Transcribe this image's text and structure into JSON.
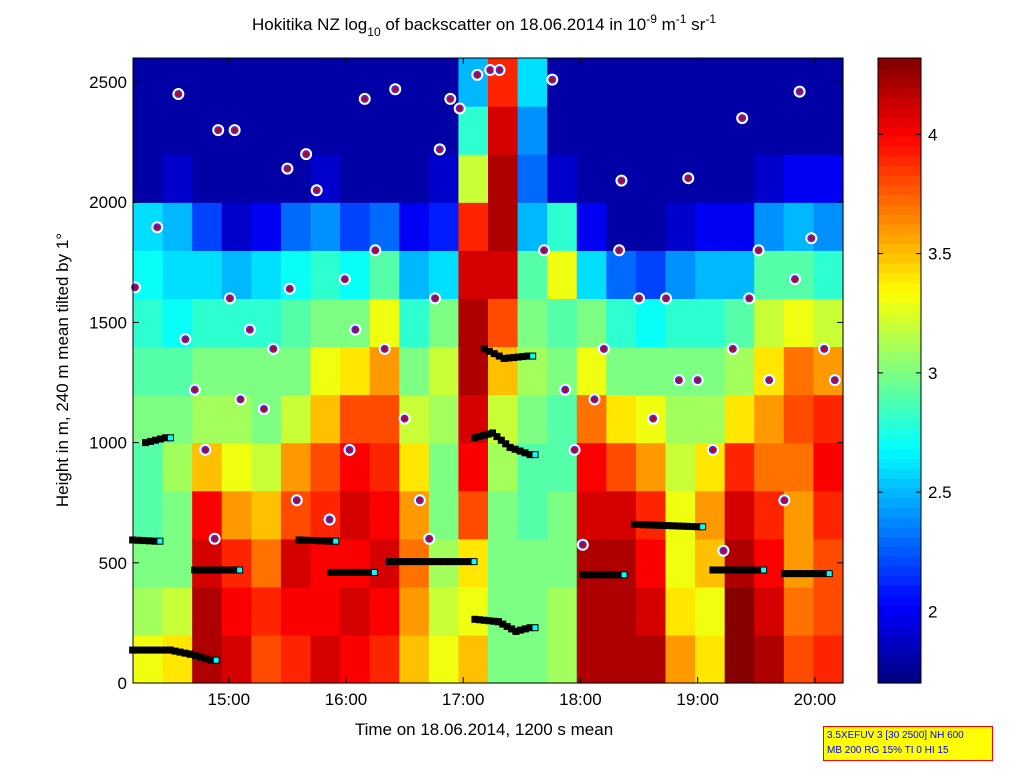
{
  "chart_data": {
    "type": "heatmap",
    "title": {
      "prefix": "Hokitika NZ log",
      "sub": "10",
      "mid": " of backscatter on 18.06.2014 in 10",
      "sup1": "-9",
      "unit1": " m",
      "sup2": "-1",
      "unit2": " sr",
      "sup3": "-1"
    },
    "xlabel": "Time on 18.06.2014, 1200 s mean",
    "ylabel": "Height in m, 240 m mean tilted by 1°",
    "xlim": [
      14.183,
      20.24
    ],
    "ylim": [
      0,
      2600
    ],
    "xticks": [
      {
        "v": 15,
        "label": "15:00"
      },
      {
        "v": 16,
        "label": "16:00"
      },
      {
        "v": 17,
        "label": "17:00"
      },
      {
        "v": 18,
        "label": "18:00"
      },
      {
        "v": 19,
        "label": "19:00"
      },
      {
        "v": 20,
        "label": "20:00"
      }
    ],
    "yticks": [
      {
        "v": 0,
        "label": "0"
      },
      {
        "v": 500,
        "label": "500"
      },
      {
        "v": 1000,
        "label": "1000"
      },
      {
        "v": 1500,
        "label": "1500"
      },
      {
        "v": 2000,
        "label": "2000"
      },
      {
        "v": 2500,
        "label": "2500"
      }
    ],
    "colorbar": {
      "clim": [
        1.7,
        4.32
      ],
      "ticks": [
        {
          "v": 2,
          "label": "2"
        },
        {
          "v": 2.5,
          "label": "2.5"
        },
        {
          "v": 3,
          "label": "3"
        },
        {
          "v": 3.5,
          "label": "3.5"
        },
        {
          "v": 4,
          "label": "4"
        }
      ],
      "colormap": "jet"
    },
    "height_bin_m": 200,
    "grid": [
      [
        3.3,
        3.1,
        3.0,
        2.9,
        2.9,
        3.0,
        2.9,
        2.8,
        2.7,
        2.6,
        1.8,
        1.8,
        1.8
      ],
      [
        3.4,
        3.2,
        3.0,
        3.0,
        3.1,
        3.0,
        2.9,
        2.7,
        2.6,
        2.5,
        1.9,
        1.8,
        1.8
      ],
      [
        4.2,
        4.2,
        4.1,
        4.0,
        3.5,
        3.1,
        3.0,
        2.8,
        2.6,
        2.2,
        1.8,
        1.8,
        1.8
      ],
      [
        4.1,
        4.0,
        3.9,
        3.6,
        3.3,
        3.1,
        3.0,
        2.8,
        2.5,
        1.9,
        1.8,
        1.8,
        1.8
      ],
      [
        3.8,
        3.9,
        3.7,
        3.5,
        3.2,
        3.0,
        3.0,
        2.8,
        2.6,
        2.0,
        1.8,
        1.8,
        1.8
      ],
      [
        3.9,
        4.0,
        4.1,
        3.8,
        3.6,
        3.2,
        3.0,
        2.9,
        2.7,
        2.3,
        1.8,
        1.8,
        1.8
      ],
      [
        4.1,
        4.0,
        4.0,
        3.9,
        3.8,
        3.5,
        3.3,
        3.0,
        2.8,
        2.4,
        1.9,
        1.8,
        1.8
      ],
      [
        4.0,
        4.1,
        4.0,
        4.1,
        4.0,
        3.8,
        3.4,
        3.0,
        2.7,
        2.2,
        1.8,
        1.8,
        1.8
      ],
      [
        3.9,
        4.0,
        4.1,
        4.0,
        3.9,
        3.8,
        3.6,
        3.3,
        2.9,
        2.3,
        1.8,
        1.8,
        1.8
      ],
      [
        3.5,
        3.6,
        3.7,
        3.6,
        3.4,
        3.2,
        3.0,
        2.8,
        2.5,
        2.0,
        1.8,
        1.8,
        1.8
      ],
      [
        3.3,
        3.2,
        3.1,
        3.0,
        3.0,
        3.1,
        3.2,
        3.0,
        2.6,
        2.1,
        1.9,
        1.8,
        1.8
      ],
      [
        3.5,
        3.3,
        3.4,
        3.8,
        4.0,
        4.1,
        4.2,
        4.2,
        4.1,
        3.9,
        3.2,
        2.8,
        2.5
      ],
      [
        3.0,
        3.0,
        3.0,
        3.0,
        3.1,
        3.2,
        3.5,
        3.8,
        4.1,
        4.2,
        4.2,
        4.1,
        3.9
      ],
      [
        3.0,
        3.0,
        3.0,
        2.9,
        2.9,
        3.0,
        3.1,
        3.0,
        2.9,
        2.5,
        2.3,
        2.4,
        2.6
      ],
      [
        3.1,
        3.1,
        3.0,
        3.0,
        2.9,
        2.9,
        3.0,
        2.9,
        3.3,
        2.8,
        1.9,
        1.8,
        1.8
      ],
      [
        4.2,
        4.2,
        4.2,
        4.1,
        4.0,
        3.7,
        3.3,
        3.0,
        2.6,
        2.0,
        1.8,
        1.8,
        1.8
      ],
      [
        4.2,
        4.2,
        4.2,
        4.1,
        3.8,
        3.4,
        3.0,
        2.8,
        2.3,
        1.8,
        1.8,
        1.8,
        1.8
      ],
      [
        4.2,
        4.1,
        4.0,
        3.9,
        3.6,
        3.3,
        3.0,
        2.7,
        2.2,
        1.8,
        1.8,
        1.8,
        1.8
      ],
      [
        3.6,
        3.4,
        3.3,
        3.3,
        3.2,
        3.1,
        3.0,
        2.8,
        2.4,
        1.9,
        1.8,
        1.8,
        1.8
      ],
      [
        3.4,
        3.3,
        3.5,
        3.6,
        3.4,
        3.1,
        3.0,
        2.8,
        2.5,
        2.0,
        1.8,
        1.8,
        1.8
      ],
      [
        4.3,
        4.3,
        4.2,
        4.1,
        3.9,
        3.4,
        3.1,
        2.9,
        2.5,
        2.0,
        1.8,
        1.8,
        1.8
      ],
      [
        4.2,
        4.1,
        4.0,
        3.9,
        3.7,
        3.6,
        3.4,
        3.2,
        2.9,
        2.4,
        1.9,
        1.8,
        1.8
      ],
      [
        3.8,
        3.7,
        3.6,
        3.6,
        3.7,
        3.8,
        3.7,
        3.3,
        2.9,
        2.5,
        2.0,
        1.8,
        1.8
      ],
      [
        3.9,
        3.8,
        3.8,
        3.9,
        4.0,
        3.9,
        3.6,
        3.2,
        2.8,
        2.4,
        2.0,
        1.8,
        1.8
      ]
    ],
    "cloud_base_points": [
      [
        14.2,
        1646
      ],
      [
        14.57,
        2450
      ],
      [
        14.39,
        1896
      ],
      [
        14.63,
        1430
      ],
      [
        14.71,
        1220
      ],
      [
        14.8,
        970
      ],
      [
        14.88,
        600
      ],
      [
        14.91,
        2300
      ],
      [
        15.05,
        2300
      ],
      [
        15.01,
        1600
      ],
      [
        15.1,
        1180
      ],
      [
        15.18,
        1470
      ],
      [
        15.3,
        1140
      ],
      [
        15.38,
        1390
      ],
      [
        15.5,
        2140
      ],
      [
        15.52,
        1640
      ],
      [
        15.58,
        760
      ],
      [
        15.66,
        2200
      ],
      [
        15.75,
        2050
      ],
      [
        15.86,
        680
      ],
      [
        15.99,
        1680
      ],
      [
        16.08,
        1470
      ],
      [
        16.03,
        970
      ],
      [
        16.16,
        2430
      ],
      [
        16.25,
        1800
      ],
      [
        16.33,
        1390
      ],
      [
        16.42,
        2470
      ],
      [
        16.5,
        1100
      ],
      [
        16.63,
        760
      ],
      [
        16.71,
        600
      ],
      [
        16.76,
        1600
      ],
      [
        16.8,
        2220
      ],
      [
        16.89,
        2430
      ],
      [
        16.97,
        2390
      ],
      [
        17.12,
        2530
      ],
      [
        17.23,
        2550
      ],
      [
        17.31,
        2550
      ],
      [
        17.76,
        2510
      ],
      [
        17.69,
        1800
      ],
      [
        17.87,
        1220
      ],
      [
        17.95,
        970
      ],
      [
        18.02,
        575
      ],
      [
        18.12,
        1180
      ],
      [
        18.2,
        1390
      ],
      [
        18.33,
        1800
      ],
      [
        18.35,
        2090
      ],
      [
        18.5,
        1600
      ],
      [
        18.62,
        1100
      ],
      [
        18.73,
        1600
      ],
      [
        18.84,
        1260
      ],
      [
        18.92,
        2100
      ],
      [
        19.0,
        1260
      ],
      [
        19.13,
        970
      ],
      [
        19.22,
        550
      ],
      [
        19.3,
        1390
      ],
      [
        19.38,
        2350
      ],
      [
        19.44,
        1600
      ],
      [
        19.52,
        1800
      ],
      [
        19.61,
        1260
      ],
      [
        19.74,
        760
      ],
      [
        19.83,
        1680
      ],
      [
        19.87,
        2460
      ],
      [
        19.97,
        1850
      ],
      [
        20.08,
        1390
      ],
      [
        20.17,
        1260
      ]
    ],
    "layer_segments": [
      [
        [
          14.18,
          595
        ],
        [
          14.37,
          590
        ]
      ],
      [
        [
          14.18,
          137
        ],
        [
          14.5,
          137
        ],
        [
          14.67,
          120
        ],
        [
          14.85,
          95
        ]
      ],
      [
        [
          14.71,
          470
        ],
        [
          15.05,
          470
        ]
      ],
      [
        [
          14.29,
          1000
        ],
        [
          14.46,
          1020
        ]
      ],
      [
        [
          15.6,
          595
        ],
        [
          15.87,
          590
        ]
      ],
      [
        [
          15.87,
          460
        ],
        [
          16.2,
          460
        ]
      ],
      [
        [
          16.37,
          505
        ],
        [
          17.05,
          505
        ]
      ],
      [
        [
          17.1,
          265
        ],
        [
          17.3,
          255
        ],
        [
          17.45,
          215
        ],
        [
          17.57,
          230
        ]
      ],
      [
        [
          17.1,
          1020
        ],
        [
          17.25,
          1040
        ],
        [
          17.4,
          980
        ],
        [
          17.57,
          950
        ]
      ],
      [
        [
          17.18,
          1390
        ],
        [
          17.35,
          1350
        ],
        [
          17.55,
          1360
        ]
      ],
      [
        [
          18.02,
          450
        ],
        [
          18.33,
          450
        ]
      ],
      [
        [
          18.46,
          660
        ],
        [
          19.0,
          650
        ]
      ],
      [
        [
          19.13,
          470
        ],
        [
          19.52,
          470
        ]
      ],
      [
        [
          19.74,
          455
        ],
        [
          20.08,
          455
        ]
      ]
    ]
  },
  "info_box": {
    "line1": "3.5XEFUV 3 [30 2500] NH 600",
    "line2": "MB 200 RG 15% TI 0 HI 15",
    "text_color": "#0000ff",
    "bg_color": "#ffff00",
    "border_color": "#ff0000"
  }
}
